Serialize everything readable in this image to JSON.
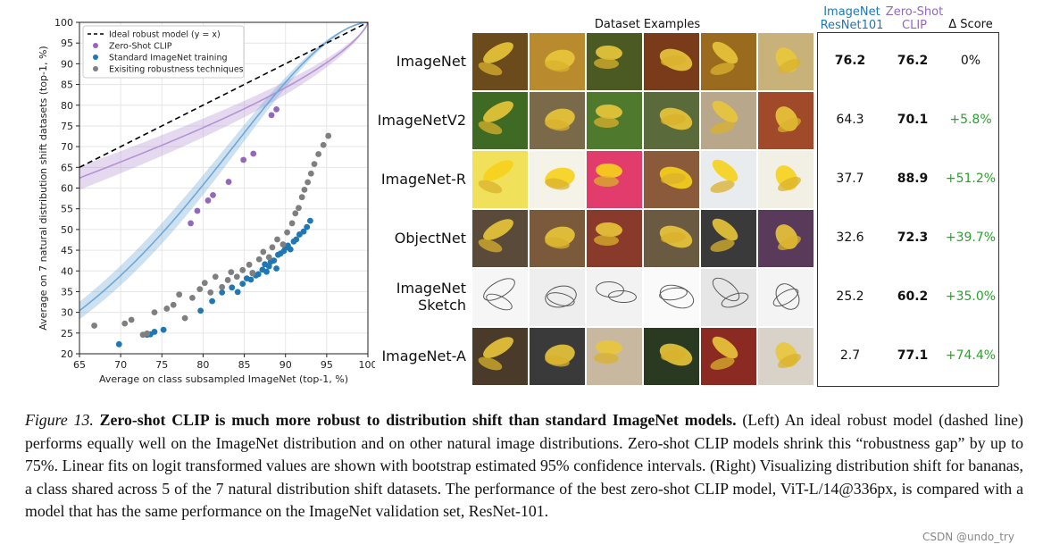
{
  "chart_data": {
    "type": "scatter",
    "xlabel": "Average on class subsampled ImageNet (top-1, %)",
    "ylabel": "Average on 7 natural distribution shift datasets (top-1, %)",
    "xlim": [
      65,
      100
    ],
    "ylim": [
      20,
      100
    ],
    "xticks": [
      "65",
      "70",
      "75",
      "80",
      "85",
      "90",
      "95",
      "100"
    ],
    "yticks": [
      "20",
      "25",
      "30",
      "35",
      "40",
      "45",
      "50",
      "55",
      "60",
      "65",
      "70",
      "75",
      "80",
      "85",
      "90",
      "95",
      "100"
    ],
    "grid": true,
    "legend_position": "top-left",
    "series": [
      {
        "name": "Ideal robust model (y = x)",
        "kind": "dashed-line",
        "color": "#000000",
        "x": [
          65,
          100
        ],
        "y": [
          65,
          100
        ]
      },
      {
        "name": "Zero-Shot CLIP",
        "kind": "points",
        "color": "#9467bd",
        "x": [
          78.5,
          79.3,
          80.6,
          81.2,
          83.1,
          84.9,
          86.1,
          88.3,
          88.9
        ],
        "y": [
          51.5,
          54.5,
          57.0,
          58.3,
          61.5,
          66.8,
          68.3,
          77.6,
          79.0
        ]
      },
      {
        "name": "Standard ImageNet training",
        "kind": "points",
        "color": "#1f77b4",
        "x": [
          69.8,
          73.2,
          73.6,
          74.1,
          75.2,
          79.7,
          81.1,
          82.3,
          83.5,
          84.2,
          84.8,
          85.3,
          85.8,
          86.0,
          86.4,
          86.7,
          87.2,
          87.5,
          87.7,
          88.0,
          88.2,
          88.6,
          88.9,
          89.1,
          89.4,
          89.8,
          90.0,
          90.3,
          90.6,
          91.0,
          91.3,
          91.7,
          92.2,
          92.6,
          93.0
        ],
        "y": [
          22.3,
          24.6,
          24.7,
          25.3,
          25.8,
          30.4,
          32.7,
          34.8,
          36.0,
          34.9,
          36.9,
          38.2,
          37.9,
          39.5,
          38.9,
          39.2,
          40.3,
          41.6,
          39.8,
          41.1,
          42.2,
          42.5,
          40.6,
          43.9,
          44.2,
          44.8,
          45.6,
          46.1,
          45.2,
          47.1,
          47.6,
          48.8,
          49.5,
          50.6,
          52.1
        ]
      },
      {
        "name": "Exisiting robustness techniques",
        "kind": "points",
        "color": "#7f7f7f",
        "x": [
          66.8,
          70.5,
          71.3,
          72.7,
          73.2,
          74.1,
          75.6,
          76.4,
          77.1,
          77.8,
          78.7,
          79.6,
          80.2,
          80.9,
          81.5,
          82.3,
          83.0,
          83.4,
          84.1,
          84.8,
          85.6,
          86.0,
          86.8,
          87.3,
          88.0,
          88.4,
          89.0,
          89.7,
          90.2,
          90.8,
          91.2,
          91.6,
          92.0,
          92.3,
          92.7,
          93.1,
          93.5,
          94.0,
          94.6,
          95.2
        ],
        "y": [
          26.8,
          27.3,
          28.2,
          24.6,
          24.9,
          30.0,
          30.9,
          31.8,
          34.3,
          28.6,
          33.5,
          35.6,
          37.1,
          34.8,
          38.6,
          36.1,
          37.8,
          39.7,
          38.6,
          40.2,
          41.5,
          39.4,
          42.8,
          44.6,
          43.3,
          45.7,
          47.6,
          46.4,
          49.3,
          51.5,
          53.9,
          55.2,
          57.8,
          59.6,
          61.4,
          63.5,
          65.8,
          68.2,
          70.4,
          72.6
        ]
      }
    ],
    "legend_entries": [
      "Ideal robust model (y = x)",
      "Zero-Shot CLIP",
      "Standard ImageNet training",
      "Exisiting robustness techniques"
    ]
  },
  "table": {
    "examples_header": "Dataset Examples",
    "col_resnet_header": [
      "ImageNet",
      "ResNet101"
    ],
    "col_clip_header": [
      "Zero-Shot",
      "CLIP"
    ],
    "col_delta_header": "Δ Score",
    "resnet_color": "#1f77b4",
    "clip_color": "#9467bd",
    "delta_color": "#2ca02c",
    "rows": [
      {
        "label": [
          "ImageNet"
        ],
        "resnet": "76.2",
        "clip": "76.2",
        "delta": "0%",
        "delta_black": true
      },
      {
        "label": [
          "ImageNetV2"
        ],
        "resnet": "64.3",
        "clip": "70.1",
        "delta": "+5.8%",
        "delta_black": false
      },
      {
        "label": [
          "ImageNet-R"
        ],
        "resnet": "37.7",
        "clip": "88.9",
        "delta": "+51.2%",
        "delta_black": false
      },
      {
        "label": [
          "ObjectNet"
        ],
        "resnet": "32.6",
        "clip": "72.3",
        "delta": "+39.7%",
        "delta_black": false
      },
      {
        "label": [
          "ImageNet",
          "Sketch"
        ],
        "resnet": "25.2",
        "clip": "60.2",
        "delta": "+35.0%",
        "delta_black": false
      },
      {
        "label": [
          "ImageNet-A"
        ],
        "resnet": "2.7",
        "clip": "77.1",
        "delta": "+74.4%",
        "delta_black": false
      }
    ],
    "tile_palettes": [
      [
        "#6b4a1c",
        "#b98a2e",
        "#4a5a22",
        "#7a3b1a",
        "#9a6b1e",
        "#c9b27a"
      ],
      [
        "#3f6a23",
        "#7b6a4a",
        "#4f7a2e",
        "#5a6a3a",
        "#b8a78a",
        "#a04a2a"
      ],
      [
        "#f1e15a",
        "#f5f2e8",
        "#e23c6c",
        "#8a5a3a",
        "#e8ecef",
        "#f2efe4"
      ],
      [
        "#5a4a3a",
        "#7a5a3a",
        "#8a3a2a",
        "#6a5a42",
        "#3a3a3a",
        "#5a3a5a"
      ],
      [
        "#f6f6f6",
        "#eeeeee",
        "#f2f2f2",
        "#fafafa",
        "#e6e6e6",
        "#f4f4f4"
      ],
      [
        "#4a3a2a",
        "#3a3a3a",
        "#c9b8a0",
        "#2a3a22",
        "#8a2a22",
        "#d8d2c8"
      ]
    ]
  },
  "caption": {
    "label": "Figure 13.",
    "title": "Zero-shot CLIP is much more robust to distribution shift than standard ImageNet models.",
    "body": "(Left) An ideal robust model (dashed line) performs equally well on the ImageNet distribution and on other natural image distributions. Zero-shot CLIP models shrink this “robustness gap” by up to 75%. Linear fits on logit transformed values are shown with bootstrap estimated 95% confidence intervals. (Right) Visualizing distribution shift for bananas, a class shared across 5 of the 7 natural distribution shift datasets. The performance of the best zero-shot CLIP model, ViT-L/14@336px, is compared with a model that has the same performance on the ImageNet validation set, ResNet-101."
  },
  "watermark": "CSDN @undo_try"
}
